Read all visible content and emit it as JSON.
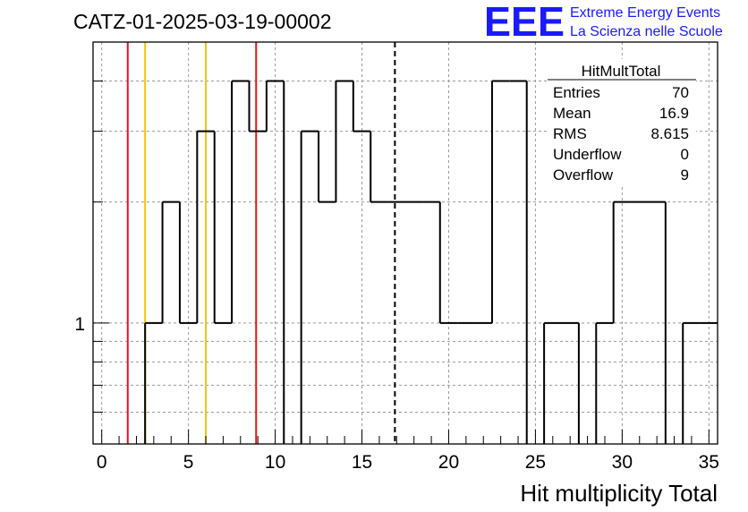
{
  "header": {
    "title": "CATZ-01-2025-03-19-00002",
    "logo_text": "EEE",
    "org_line1": "Extreme Energy Events",
    "org_line2": "La Scienza nelle Scuole"
  },
  "stats": {
    "name": "HitMultTotal",
    "rows": [
      {
        "label": "Entries",
        "value": "70"
      },
      {
        "label": "Mean",
        "value": "16.9"
      },
      {
        "label": "RMS",
        "value": "8.615"
      },
      {
        "label": "Underflow",
        "value": "0"
      },
      {
        "label": "Overflow",
        "value": "9"
      }
    ]
  },
  "colors": {
    "red_line": "#e8131b",
    "yellow_line": "#f2c40c",
    "histogram": "#000000",
    "grid": "#9a9a9a",
    "logo": "#1a1aff"
  },
  "chart_data": {
    "type": "histogram",
    "xlabel": "Hit multiplicity Total",
    "ylabel": "",
    "xlim": [
      -0.5,
      35.5
    ],
    "ylim_log": [
      0.5,
      5.0
    ],
    "log_y": true,
    "grid": true,
    "x_ticks": [
      0,
      5,
      10,
      15,
      20,
      25,
      30,
      35
    ],
    "y_tick_labels": [
      {
        "value": 1,
        "label": "1"
      }
    ],
    "bin_width": 1,
    "bins": [
      {
        "x": 0,
        "count": 0
      },
      {
        "x": 1,
        "count": 0
      },
      {
        "x": 2,
        "count": 0
      },
      {
        "x": 3,
        "count": 1
      },
      {
        "x": 4,
        "count": 2
      },
      {
        "x": 5,
        "count": 1
      },
      {
        "x": 6,
        "count": 3
      },
      {
        "x": 7,
        "count": 1
      },
      {
        "x": 8,
        "count": 4
      },
      {
        "x": 9,
        "count": 3
      },
      {
        "x": 10,
        "count": 4
      },
      {
        "x": 11,
        "count": 0
      },
      {
        "x": 12,
        "count": 3
      },
      {
        "x": 13,
        "count": 2
      },
      {
        "x": 14,
        "count": 4
      },
      {
        "x": 15,
        "count": 3
      },
      {
        "x": 16,
        "count": 2
      },
      {
        "x": 17,
        "count": 2
      },
      {
        "x": 18,
        "count": 2
      },
      {
        "x": 19,
        "count": 2
      },
      {
        "x": 20,
        "count": 1
      },
      {
        "x": 21,
        "count": 1
      },
      {
        "x": 22,
        "count": 1
      },
      {
        "x": 23,
        "count": 4
      },
      {
        "x": 24,
        "count": 4
      },
      {
        "x": 25,
        "count": 0
      },
      {
        "x": 26,
        "count": 1
      },
      {
        "x": 27,
        "count": 1
      },
      {
        "x": 28,
        "count": 0
      },
      {
        "x": 29,
        "count": 1
      },
      {
        "x": 30,
        "count": 2
      },
      {
        "x": 31,
        "count": 2
      },
      {
        "x": 32,
        "count": 2
      },
      {
        "x": 33,
        "count": 0
      },
      {
        "x": 34,
        "count": 1
      },
      {
        "x": 35,
        "count": 1
      }
    ],
    "vertical_lines": [
      {
        "x": 1.5,
        "color": "red",
        "style": "solid"
      },
      {
        "x": 2.5,
        "color": "yellow",
        "style": "solid"
      },
      {
        "x": 6.0,
        "color": "yellow",
        "style": "solid"
      },
      {
        "x": 8.9,
        "color": "red",
        "style": "solid"
      },
      {
        "x": 16.9,
        "color": "black",
        "style": "dashed"
      }
    ]
  }
}
